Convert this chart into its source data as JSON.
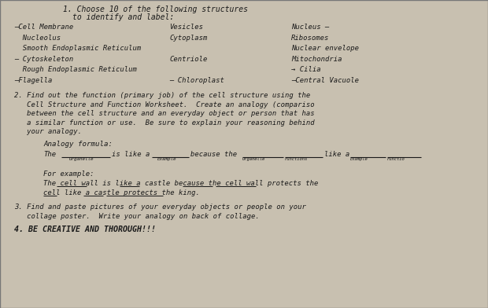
{
  "bg_color": "#c8c0b0",
  "paper_color": "#ede8df",
  "structures_col1": [
    "—Cell Membrane",
    "  Nucleolus",
    "  Smooth Endoplasmic Reticulum",
    "— Cytoskeleton",
    "  Rough Endoplasmic Reticulum",
    "—Flagella"
  ],
  "structures_col2": [
    "Vesicles",
    "Cytoplasm",
    "",
    "Centriole",
    "",
    "— Chloroplast"
  ],
  "structures_col3": [
    "Nucleus –",
    "Ribosomes",
    "Nuclear envelope",
    "Mitochondria",
    "→ Cilia",
    "—Central Vacuole"
  ],
  "section2_lines": [
    "2. Find out the function (primary job) of the cell structure using the",
    "   Cell Structure and Function Worksheet.  Create an analogy (compariso",
    "   between the cell structure and an everyday object or person that has",
    "   a similar function or use.  Be sure to explain your reasoning behind",
    "   your analogy."
  ],
  "analogy_formula_label": "Analogy formula:",
  "for_example": "For example:",
  "example_line1": "The cell wall is like a castle because the cell wall protects the",
  "example_line2": "cell like a castle protects the king.",
  "section3_lines": [
    "3. Find and paste pictures of your everyday objects or people on your",
    "   collage poster.  Write your analogy on back of collage."
  ],
  "section4": "4. BE CREATIVE AND THOROUGH!!!",
  "text_color": "#1a1a1a",
  "mono_font": "monospace"
}
